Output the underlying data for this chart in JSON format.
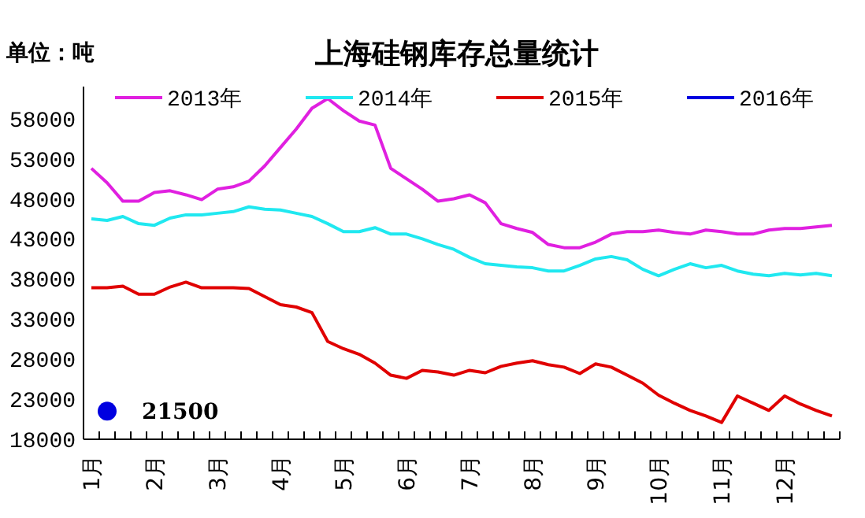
{
  "chart_data": {
    "type": "line",
    "title": "上海硅钢库存总量统计",
    "ylabel": "单位：吨",
    "categories": [
      "1月",
      null,
      null,
      null,
      "2月",
      null,
      null,
      null,
      "3月",
      null,
      null,
      null,
      "4月",
      null,
      null,
      null,
      "5月",
      null,
      null,
      null,
      "6月",
      null,
      null,
      null,
      "7月",
      null,
      null,
      null,
      "8月",
      null,
      null,
      null,
      "9月",
      null,
      null,
      null,
      "10月",
      null,
      null,
      null,
      "11月",
      null,
      null,
      null,
      "12月",
      null,
      null,
      null
    ],
    "ylim": [
      18000,
      62000
    ],
    "yticks": [
      18000,
      23000,
      28000,
      33000,
      38000,
      43000,
      48000,
      53000,
      58000
    ],
    "grid": false,
    "legend": "top",
    "line_style": "solid",
    "series": [
      {
        "name": "2013年",
        "color": "#e020e0",
        "values": [
          51800,
          50000,
          47700,
          47700,
          48800,
          49000,
          48500,
          47900,
          49200,
          49500,
          50200,
          52100,
          54400,
          56700,
          59300,
          60500,
          59000,
          57700,
          57200,
          51800,
          50500,
          49200,
          47700,
          48000,
          48500,
          47500,
          44900,
          44300,
          43800,
          42300,
          41900,
          41900,
          42600,
          43600,
          43900,
          43900,
          44100,
          43800,
          43600,
          44100,
          43900,
          43600,
          43600,
          44100,
          44300,
          44300,
          44500,
          44700
        ]
      },
      {
        "name": "2014年",
        "color": "#20e8f0",
        "values": [
          45500,
          45300,
          45800,
          44900,
          44700,
          45600,
          46000,
          46000,
          46200,
          46400,
          47000,
          46700,
          46600,
          46200,
          45800,
          44900,
          43900,
          43900,
          44400,
          43600,
          43600,
          43000,
          42300,
          41700,
          40700,
          39900,
          39700,
          39500,
          39400,
          39000,
          39000,
          39700,
          40500,
          40800,
          40400,
          39200,
          38400,
          39200,
          39900,
          39400,
          39700,
          39000,
          38600,
          38400,
          38700,
          38500,
          38700,
          38400
        ]
      },
      {
        "name": "2015年",
        "color": "#e00000",
        "values": [
          36900,
          36900,
          37100,
          36100,
          36100,
          37000,
          37600,
          36900,
          36900,
          36900,
          36800,
          35800,
          34800,
          34500,
          33800,
          30200,
          29300,
          28600,
          27500,
          26000,
          25600,
          26600,
          26400,
          26000,
          26600,
          26300,
          27100,
          27500,
          27800,
          27300,
          27000,
          26200,
          27400,
          27000,
          26000,
          25000,
          23500,
          22500,
          21600,
          20900,
          20100,
          23400,
          22500,
          21600,
          23400,
          22400,
          21600,
          20900
        ]
      },
      {
        "name": "2016年",
        "type": "scatter",
        "color": "#0000e0",
        "marker": "circle",
        "values": [
          null,
          21500,
          null,
          null,
          null,
          null,
          null,
          null,
          null,
          null,
          null,
          null,
          null,
          null,
          null,
          null,
          null,
          null,
          null,
          null,
          null,
          null,
          null,
          null,
          null,
          null,
          null,
          null,
          null,
          null,
          null,
          null,
          null,
          null,
          null,
          null,
          null,
          null,
          null,
          null,
          null,
          null,
          null,
          null,
          null,
          null,
          null,
          null
        ],
        "value_labels": [
          null,
          "21500",
          null,
          null,
          null,
          null,
          null,
          null,
          null,
          null,
          null,
          null,
          null,
          null,
          null,
          null,
          null,
          null,
          null,
          null,
          null,
          null,
          null,
          null,
          null,
          null,
          null,
          null,
          null,
          null,
          null,
          null,
          null,
          null,
          null,
          null,
          null,
          null,
          null,
          null,
          null,
          null,
          null,
          null,
          null,
          null,
          null,
          null
        ]
      }
    ]
  }
}
